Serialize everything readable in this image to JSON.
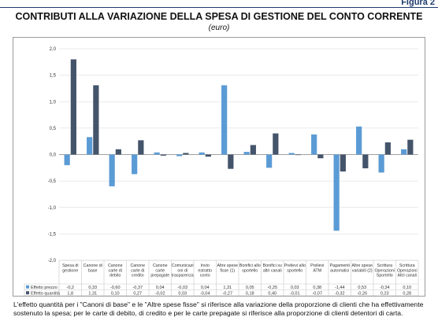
{
  "figure_label": "Figura 2",
  "title": "CONTRIBUTI ALLA VARIAZIONE DELLA SPESA DI GESTIONE DEL CONTO CORRENTE",
  "subtitle": "(euro)",
  "caption": "L'effetto quantità per i \"Canoni di base\" e le \"Altre spese fisse\" si riferisce alla variazione della proporzione di clienti che ha effettivamente sostenuto la spesa; per le carte di debito, di credito e per le carte prepagate si riferisce alla proporzione di clienti detentori di carta.",
  "chart_data": {
    "type": "bar",
    "ylim": [
      -2.0,
      2.0
    ],
    "y_ticks": [
      "2,0",
      "1,5",
      "1,0",
      "0,5",
      "0,0",
      "-0,5",
      "-1,0",
      "-1,5",
      "-2,0"
    ],
    "grid": true,
    "legend": "table-rows",
    "categories": [
      [
        "Spesa di",
        "gestione"
      ],
      [
        "Canone di",
        "base"
      ],
      [
        "Canone",
        "carte di",
        "debito"
      ],
      [
        "Canone",
        "carte di",
        "credito"
      ],
      [
        "Canone",
        "carte",
        "prepagate"
      ],
      [
        "Comunicazi",
        "oni di",
        "trasparenza"
      ],
      [
        "Invio",
        "estratto",
        "conto"
      ],
      [
        "Altre spese",
        "fisse (1)"
      ],
      [
        "Bonifici allo",
        "sportello"
      ],
      [
        "Bonifici su",
        "altri canali"
      ],
      [
        "Prelievi allo",
        "sportello"
      ],
      [
        "Prelievi",
        "ATM"
      ],
      [
        "Pagamenti",
        "automatici"
      ],
      [
        "Altre spese",
        "variabili (2)"
      ],
      [
        "Scrittura",
        "Operazioni",
        "Sportello"
      ],
      [
        "Scrittura",
        "Operazioni",
        "Altri canali"
      ]
    ],
    "series": [
      {
        "name": "Effetto prezzo",
        "color": "#5b9bd5",
        "values": [
          -0.2,
          0.33,
          -0.6,
          -0.37,
          0.04,
          -0.03,
          0.04,
          1.31,
          0.05,
          -0.25,
          0.03,
          0.38,
          -1.44,
          0.53,
          -0.34,
          0.1
        ],
        "labels": [
          "-0,2",
          "0,33",
          "-0,60",
          "-0,37",
          "0,04",
          "-0,03",
          "0,04",
          "1,31",
          "0,05",
          "-0,25",
          "0,03",
          "0,38",
          "-1,44",
          "0,53",
          "-0,34",
          "0,10"
        ]
      },
      {
        "name": "Effetto quantità",
        "color": "#44546a",
        "values": [
          1.8,
          1.31,
          0.1,
          0.27,
          -0.02,
          0.03,
          -0.04,
          -0.27,
          0.18,
          0.4,
          -0.01,
          -0.07,
          -0.32,
          -0.26,
          0.23,
          0.28
        ],
        "labels": [
          "1,8",
          "1,31",
          "0,10",
          "0,27",
          "-0,02",
          "0,03",
          "-0,04",
          "-0,27",
          "0,18",
          "0,40",
          "-0,01",
          "-0,07",
          "-0,32",
          "-0,26",
          "0,23",
          "0,28"
        ]
      }
    ]
  }
}
